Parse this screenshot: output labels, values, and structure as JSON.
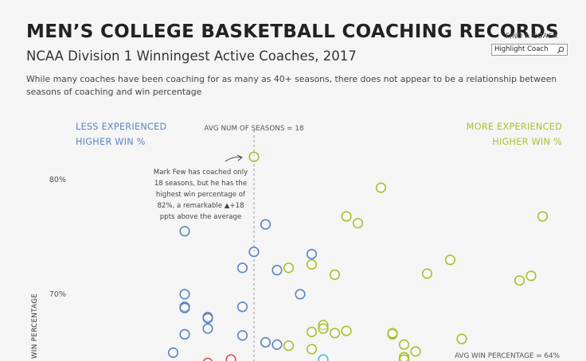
{
  "header": {
    "title": "MEN’S COLLEGE BASKETBALL COACHING RECORDS",
    "subtitle": "NCAA Division 1 Winningest Active Coaches, 2017",
    "description": "While many coaches have been coaching for as many as 40+ seasons, there does not appear to be a relationship between seasons of coaching and win percentage"
  },
  "find_coach": {
    "label": "FIND A COACH",
    "placeholder": "Highlight Coach",
    "icon": "search-icon"
  },
  "chart_data": {
    "type": "scatter",
    "xlabel": "",
    "ylabel": "WIN PERCENTAGE",
    "y_ticks": [
      {
        "value": 0.8,
        "label": "80%"
      },
      {
        "value": 0.7,
        "label": "70%"
      }
    ],
    "reference_lines": {
      "avg_seasons": {
        "value": 18,
        "label": "AVG NUM OF SEASONS = 18"
      },
      "avg_win_pct": {
        "value": 0.64,
        "label": "AVG WIN PERCENTAGE = 64%"
      }
    },
    "quadrant_labels": {
      "left": [
        "LESS EXPERIENCED",
        "HIGHER WIN %"
      ],
      "right": [
        "MORE EXPERIENCED",
        "HIGHER WIN %"
      ]
    },
    "colors": {
      "less_experienced_higher_win": "#5b84c4",
      "more_experienced_higher_win": "#a9bf2f",
      "less_experienced_lower_win": "#e0475f",
      "more_experienced_lower_win": "#3fbfd8",
      "reference_line": "#999999"
    },
    "annotation": {
      "lines": [
        "Mark Few has coached only",
        "18 seasons, but he has the",
        "highest win percentage of",
        "82%, a remarkable ▲+18",
        "ppts above the average"
      ]
    },
    "series": [
      {
        "group": "less_experienced_higher_win",
        "points": [
          {
            "x": 12,
            "y": 0.755
          },
          {
            "x": 12,
            "y": 0.7
          },
          {
            "x": 12,
            "y": 0.689
          },
          {
            "x": 12,
            "y": 0.688
          },
          {
            "x": 12,
            "y": 0.665
          },
          {
            "x": 11,
            "y": 0.649
          },
          {
            "x": 14,
            "y": 0.68
          },
          {
            "x": 14,
            "y": 0.679
          },
          {
            "x": 14,
            "y": 0.67
          },
          {
            "x": 17,
            "y": 0.723
          },
          {
            "x": 17,
            "y": 0.689
          },
          {
            "x": 17,
            "y": 0.664
          },
          {
            "x": 18,
            "y": 0.737
          },
          {
            "x": 19,
            "y": 0.761
          },
          {
            "x": 20,
            "y": 0.721
          },
          {
            "x": 19,
            "y": 0.658
          },
          {
            "x": 20,
            "y": 0.656
          },
          {
            "x": 22,
            "y": 0.7
          },
          {
            "x": 23,
            "y": 0.735
          }
        ]
      },
      {
        "group": "more_experienced_higher_win",
        "points": [
          {
            "x": 18,
            "y": 0.82
          },
          {
            "x": 29,
            "y": 0.793
          },
          {
            "x": 43,
            "y": 0.768
          },
          {
            "x": 27,
            "y": 0.762
          },
          {
            "x": 26,
            "y": 0.768
          },
          {
            "x": 35,
            "y": 0.73
          },
          {
            "x": 21,
            "y": 0.723
          },
          {
            "x": 23,
            "y": 0.726
          },
          {
            "x": 42,
            "y": 0.716
          },
          {
            "x": 33,
            "y": 0.718
          },
          {
            "x": 41,
            "y": 0.712
          },
          {
            "x": 25,
            "y": 0.717
          },
          {
            "x": 24,
            "y": 0.673
          },
          {
            "x": 25,
            "y": 0.666
          },
          {
            "x": 23,
            "y": 0.667
          },
          {
            "x": 24,
            "y": 0.67
          },
          {
            "x": 26,
            "y": 0.668
          },
          {
            "x": 30,
            "y": 0.665
          },
          {
            "x": 30,
            "y": 0.666
          },
          {
            "x": 36,
            "y": 0.661
          },
          {
            "x": 31,
            "y": 0.656
          },
          {
            "x": 32,
            "y": 0.65
          },
          {
            "x": 23,
            "y": 0.652
          },
          {
            "x": 21,
            "y": 0.655
          },
          {
            "x": 31,
            "y": 0.645
          },
          {
            "x": 31,
            "y": 0.643
          }
        ]
      },
      {
        "group": "less_experienced_lower_win",
        "points": [
          {
            "x": 14,
            "y": 0.64
          },
          {
            "x": 16,
            "y": 0.643
          }
        ]
      },
      {
        "group": "more_experienced_lower_win",
        "points": [
          {
            "x": 24,
            "y": 0.643
          }
        ]
      }
    ]
  }
}
